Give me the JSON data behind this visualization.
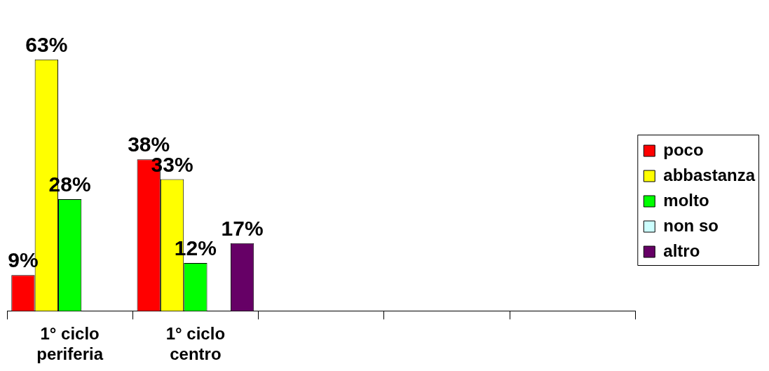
{
  "chart_data": {
    "type": "bar",
    "categories": [
      "1° ciclo periferia",
      "1° ciclo centro",
      null,
      null,
      null
    ],
    "series": [
      {
        "name": "poco",
        "color": "#ff0000",
        "values": [
          9,
          38,
          null,
          null,
          null
        ],
        "value_labels": [
          "9%",
          "38%",
          null,
          null,
          null
        ]
      },
      {
        "name": "abbastanza",
        "color": "#ffff00",
        "values": [
          63,
          33,
          null,
          null,
          null
        ],
        "value_labels": [
          "63%",
          "33%",
          null,
          null,
          null
        ]
      },
      {
        "name": "molto",
        "color": "#00ff00",
        "values": [
          28,
          12,
          null,
          null,
          null
        ],
        "value_labels": [
          "28%",
          "12%",
          null,
          null,
          null
        ]
      },
      {
        "name": "non so",
        "color": "#ccffff",
        "values": [
          null,
          null,
          null,
          null,
          null
        ]
      },
      {
        "name": "altro",
        "color": "#660066",
        "values": [
          null,
          17,
          null,
          null,
          null
        ],
        "value_labels": [
          null,
          "17%",
          null,
          null,
          null
        ]
      }
    ],
    "grid": false,
    "legend": "right"
  }
}
